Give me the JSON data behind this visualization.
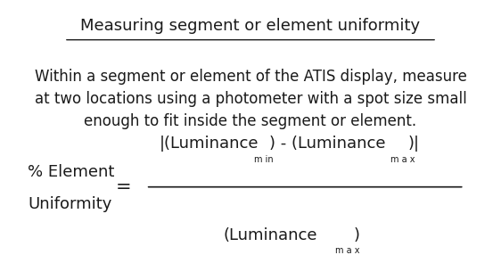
{
  "title": "Measuring segment or element uniformity",
  "body_text": "Within a segment or element of the ATIS display, measure\nat two locations using a photometer with a spot size small\nenough to fit inside the segment or element.",
  "label_line1": "% Element",
  "label_line2": "Uniformity",
  "equals": "=",
  "numerator_sub1": "m in",
  "numerator_sub2": "m a x",
  "denominator_sub": "m a x",
  "bg_color": "#ffffff",
  "text_color": "#1a1a1a",
  "title_fontsize": 13,
  "body_fontsize": 12,
  "formula_fontsize": 13,
  "sub_fontsize": 7
}
